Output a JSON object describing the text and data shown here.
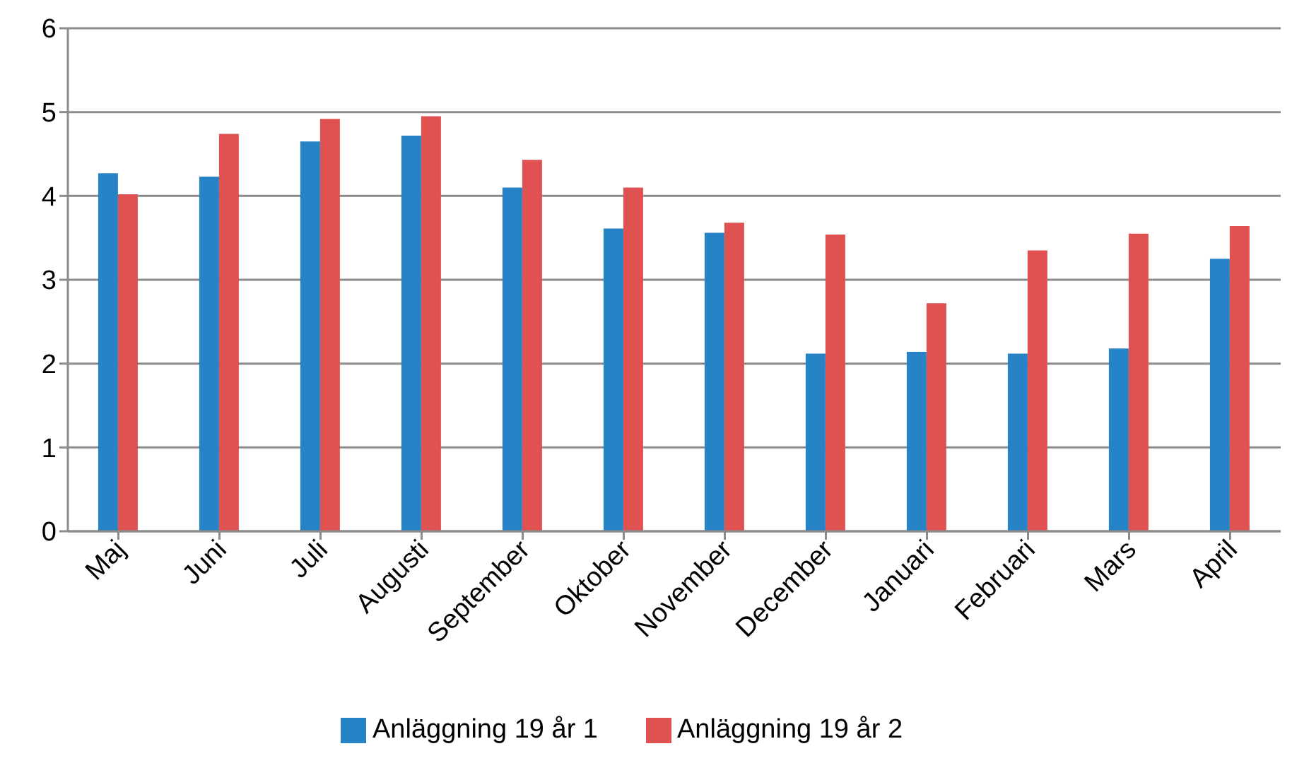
{
  "chart_data": {
    "type": "bar",
    "categories": [
      "Maj",
      "Juni",
      "Juli",
      "Augusti",
      "September",
      "Oktober",
      "November",
      "December",
      "Januari",
      "Februari",
      "Mars",
      "April"
    ],
    "series": [
      {
        "name": "Anläggning 19 år 1",
        "color": "#2683c6",
        "values": [
          4.27,
          4.23,
          4.65,
          4.72,
          4.1,
          3.61,
          3.56,
          2.12,
          2.14,
          2.12,
          2.18,
          3.25
        ]
      },
      {
        "name": "Anläggning 19 år 2",
        "color": "#e05252",
        "values": [
          4.02,
          4.74,
          4.92,
          4.95,
          4.43,
          4.1,
          3.68,
          3.54,
          2.72,
          3.35,
          3.55,
          3.64
        ]
      }
    ],
    "ylim": [
      0,
      6
    ],
    "yticks": [
      0,
      1,
      2,
      3,
      4,
      5,
      6
    ],
    "grid": "y",
    "legend": "bottom"
  }
}
